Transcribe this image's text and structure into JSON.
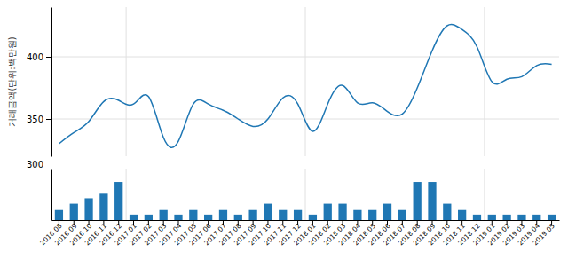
{
  "chart_data": [
    {
      "type": "line",
      "ylabel": "거래금액(단위:백만원)",
      "categories": [
        "2016.08",
        "2016.09",
        "2016.10",
        "2016.11",
        "2016.12",
        "2017.01",
        "2017.02",
        "2017.03",
        "2017.04",
        "2017.05",
        "2017.06",
        "2017.07",
        "2017.08",
        "2017.09",
        "2017.10",
        "2017.11",
        "2017.12",
        "2018.01",
        "2018.02",
        "2018.03",
        "2018.04",
        "2018.05",
        "2018.06",
        "2018.07",
        "2018.08",
        "2018.09",
        "2018.10",
        "2018.11",
        "2018.12",
        "2019.01",
        "2019.02",
        "2019.03",
        "2019.04",
        "2019.05"
      ],
      "values": [
        330,
        339,
        348,
        364,
        365,
        362,
        368,
        335,
        332,
        362,
        362,
        357,
        350,
        344,
        350,
        367,
        362,
        340,
        362,
        377,
        363,
        363,
        356,
        354,
        375,
        405,
        425,
        422,
        408,
        380,
        382,
        384,
        393,
        394
      ],
      "ylim": [
        320,
        440
      ],
      "yticks": [
        350,
        400
      ],
      "grid": true,
      "tick_labels": "y",
      "annotations": [
        {
          "text": "300"
        }
      ]
    },
    {
      "type": "bar",
      "categories": [
        "2016.08",
        "2016.09",
        "2016.10",
        "2016.11",
        "2016.12",
        "2017.01",
        "2017.02",
        "2017.03",
        "2017.04",
        "2017.05",
        "2017.06",
        "2017.07",
        "2017.08",
        "2017.09",
        "2017.10",
        "2017.11",
        "2017.12",
        "2018.01",
        "2018.02",
        "2018.03",
        "2018.04",
        "2018.05",
        "2018.06",
        "2018.07",
        "2018.08",
        "2018.09",
        "2018.10",
        "2018.11",
        "2018.12",
        "2019.01",
        "2019.02",
        "2019.03",
        "2019.04",
        "2019.05"
      ],
      "values": [
        2,
        3,
        4,
        5,
        7,
        1,
        1,
        2,
        1,
        2,
        1,
        2,
        1,
        2,
        3,
        2,
        2,
        1,
        3,
        3,
        2,
        2,
        3,
        2,
        7,
        7,
        3,
        2,
        1,
        1,
        1,
        1,
        1,
        1
      ],
      "ylim": [
        0,
        9.45
      ],
      "tick_labels": "x"
    }
  ]
}
